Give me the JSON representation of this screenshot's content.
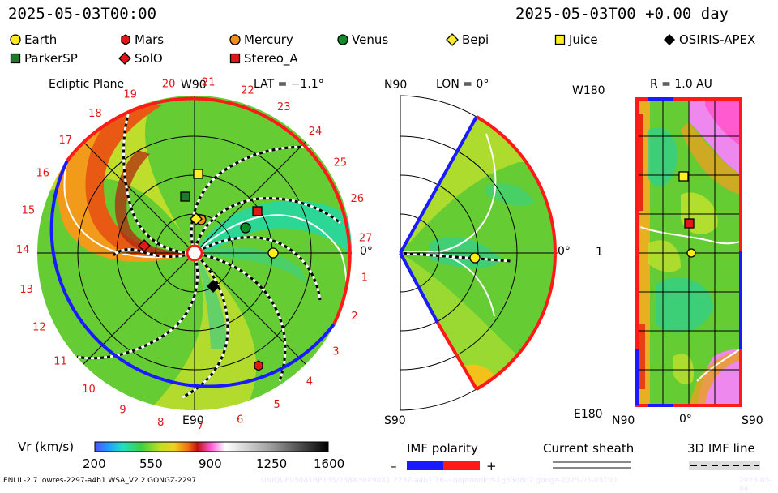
{
  "header": {
    "left_time": "2025-05-03T00:00",
    "right_time": "2025-05-03T00 +0.00 day"
  },
  "legend": [
    {
      "name": "Earth",
      "marker": "circle",
      "color": "#ffeb1a"
    },
    {
      "name": "Mars",
      "marker": "hexagon",
      "color": "#e01818"
    },
    {
      "name": "Mercury",
      "marker": "circle",
      "color": "#f0901a"
    },
    {
      "name": "Venus",
      "marker": "circle",
      "color": "#118a2a"
    },
    {
      "name": "Bepi",
      "marker": "diamond",
      "color": "#ffee22"
    },
    {
      "name": "Juice",
      "marker": "square",
      "color": "#ffee22"
    },
    {
      "name": "OSIRIS-APEX",
      "marker": "diamond",
      "color": "#000000"
    },
    {
      "name": "ParkerSP",
      "marker": "square",
      "color": "#1e7a2a"
    },
    {
      "name": "SolO",
      "marker": "diamond",
      "color": "#e01818"
    },
    {
      "name": "Stereo_A",
      "marker": "square",
      "color": "#e01818"
    }
  ],
  "panel1": {
    "title": "Ecliptic Plane",
    "lat": "LAT = −1.1°",
    "top_label": "W90",
    "bottom_label": "E90",
    "right_label": "0°",
    "carrington": [
      "1",
      "2",
      "3",
      "4",
      "5",
      "6",
      "7",
      "8",
      "9",
      "10",
      "11",
      "12",
      "13",
      "14",
      "15",
      "16",
      "17",
      "18",
      "19",
      "20",
      "21",
      "22",
      "23",
      "24",
      "25",
      "26",
      "27"
    ]
  },
  "panel2": {
    "top_label": "N90",
    "title": "LON = 0°",
    "right_label": "0°",
    "bottom_label": "S90"
  },
  "panel3": {
    "title": "R = 1.0 AU",
    "top_label": "W180",
    "mid_label": "1",
    "bottom_label": "E180",
    "x_labels": [
      "N90",
      "0°",
      "S90"
    ]
  },
  "colorbar": {
    "label": "Vr (km/s)",
    "ticks": [
      "200",
      "550",
      "900",
      "1250",
      "1600"
    ]
  },
  "imf": {
    "label": "IMF polarity",
    "minus": "–",
    "plus": "+",
    "sheath_label": "Current sheath",
    "line_label": "3D IMF line"
  },
  "footer": {
    "model": "ENLIL-2.7 lowres-2297-a4b1 WSA_V2.2 GONGZ-2297",
    "watermark": "UNIQUE05041BP135/258X30X90X1.2237-a4b1.16-~noptonnlcd-1g53q8d2 gongz-2025-05-03T00",
    "date": "2025-05-04"
  }
}
